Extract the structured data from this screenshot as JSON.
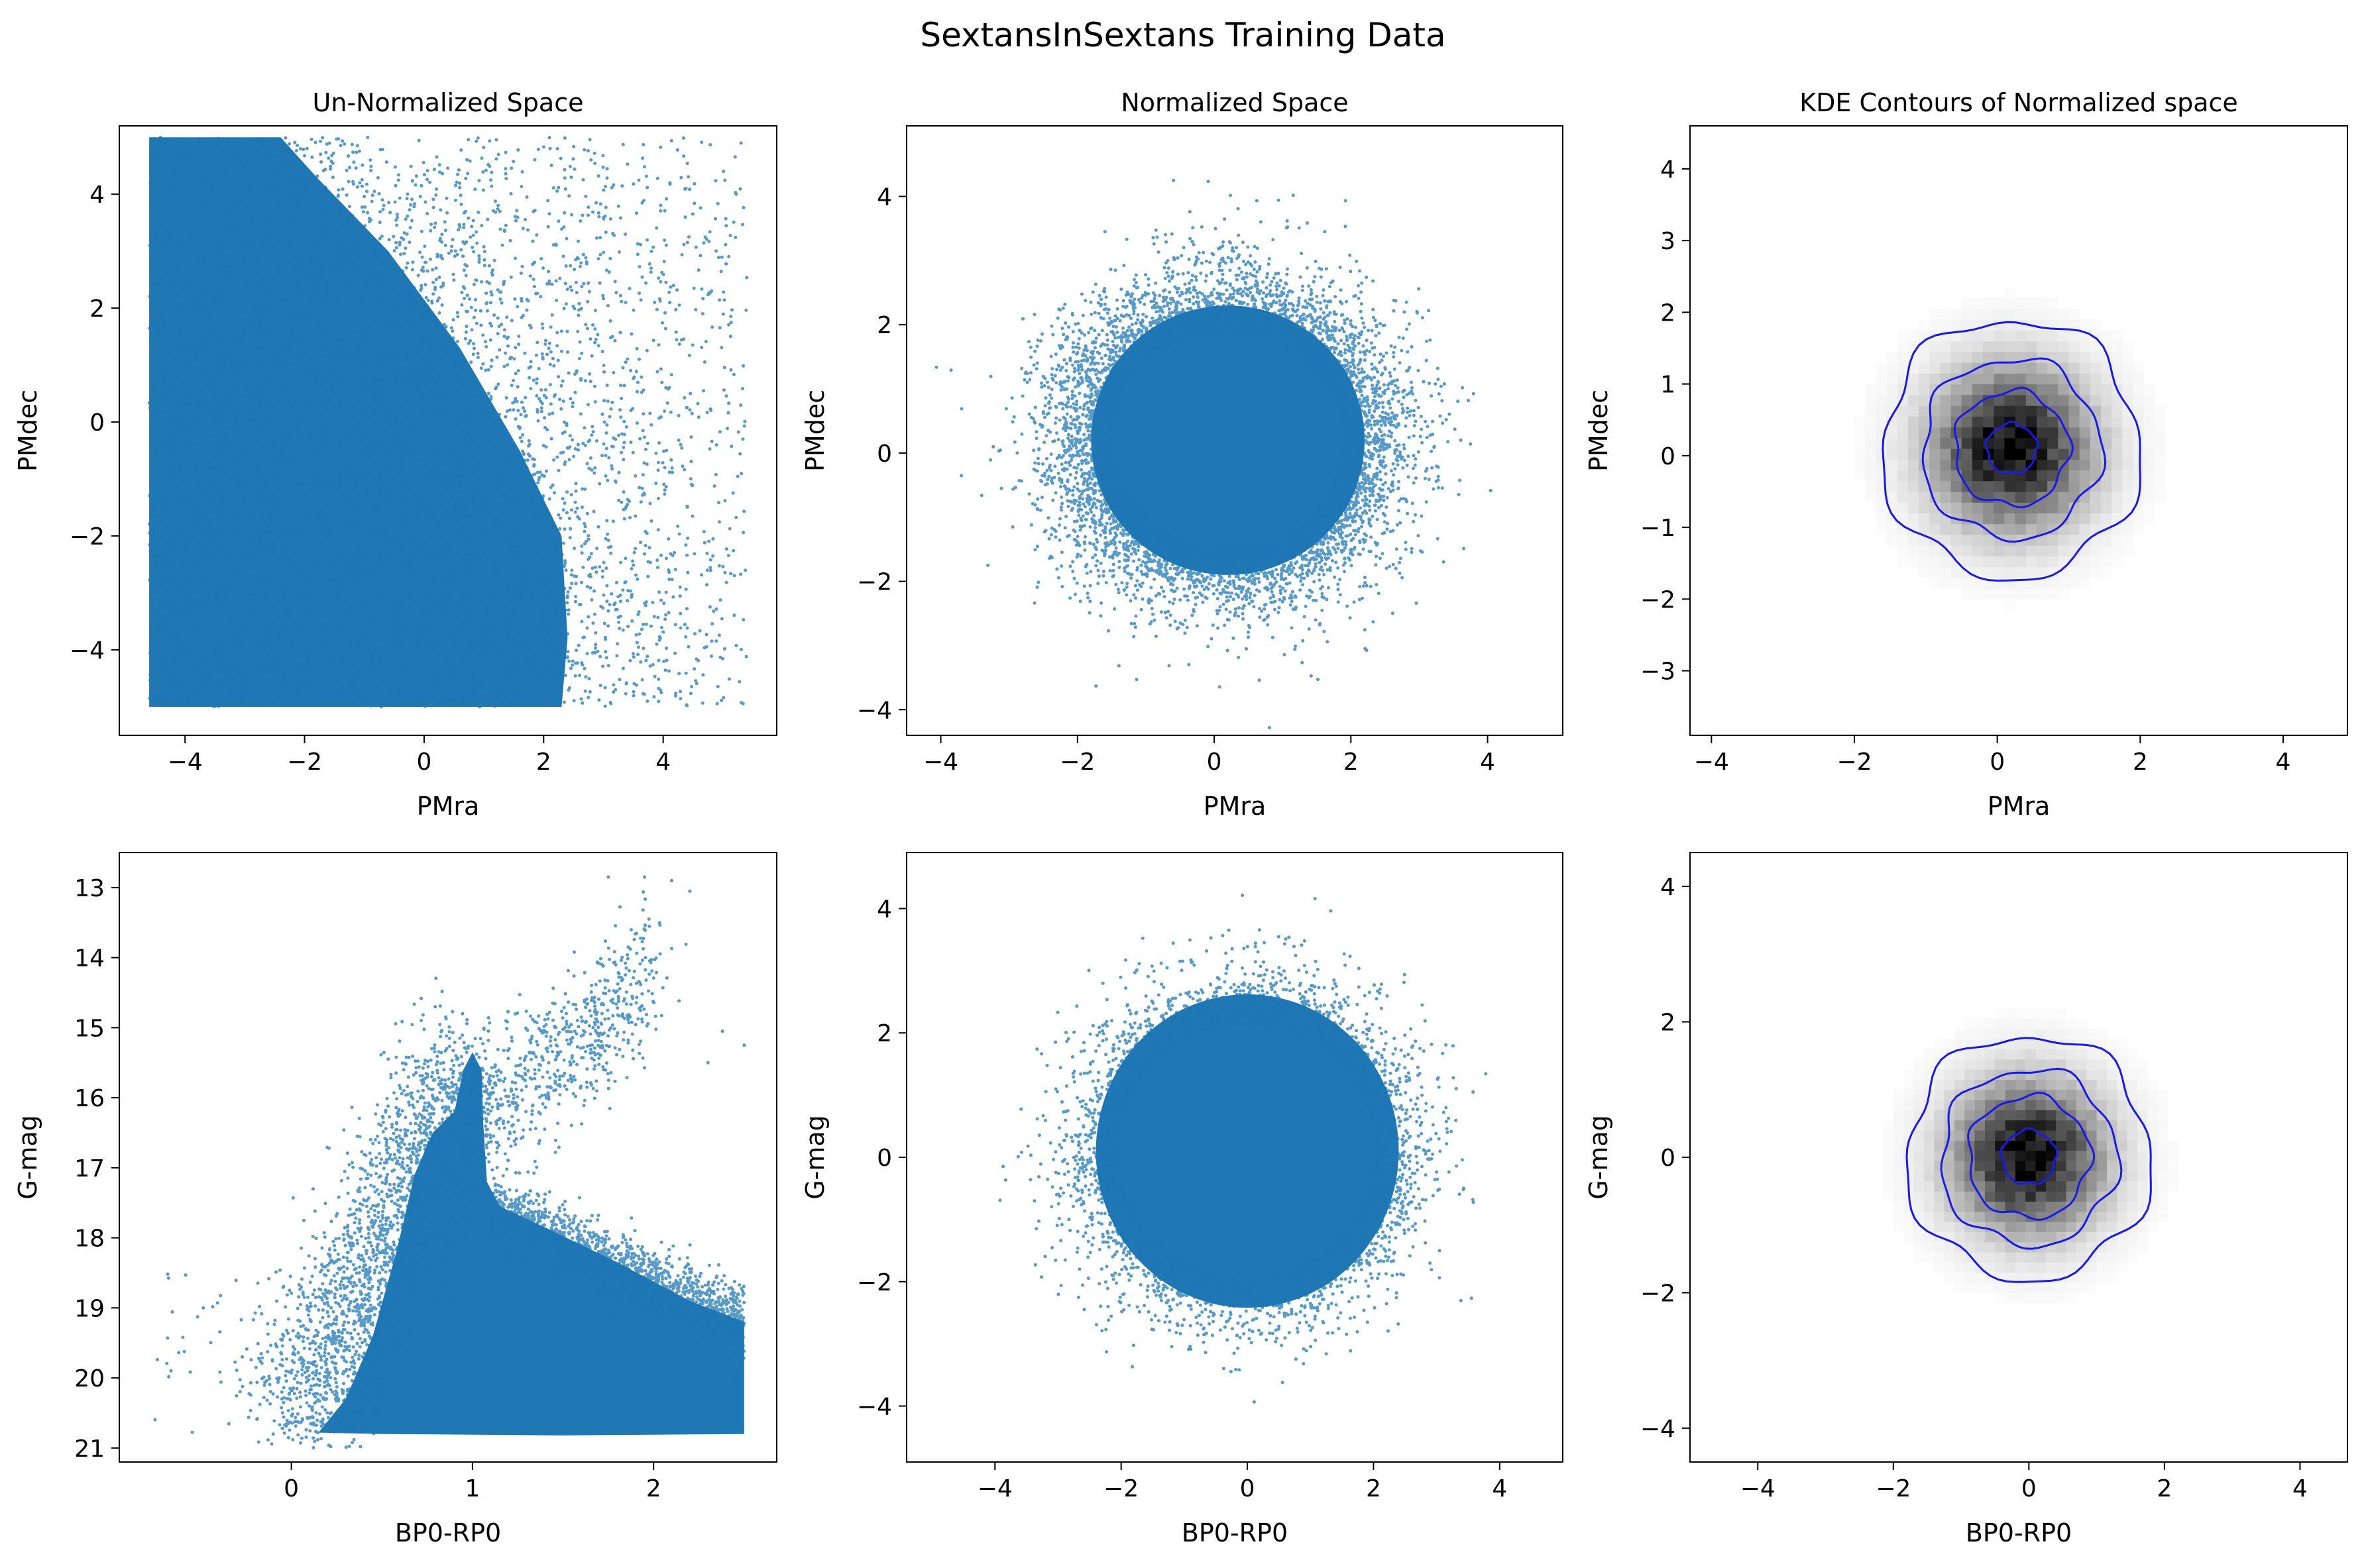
{
  "figure": {
    "title": "SextansInSextans Training Data"
  },
  "colors": {
    "scatter": "#1f77b4",
    "contour": "#1a1ae6",
    "hist_max": "#000000",
    "background": "#ffffff"
  },
  "chart_data": [
    {
      "id": "pm-unnormalized",
      "type": "scatter",
      "title": "Un-Normalized Space",
      "xlabel": "PMra",
      "ylabel": "PMdec",
      "xlim": [
        -5.1,
        5.9
      ],
      "ylim": [
        -5.5,
        5.2
      ],
      "xticks": [
        -4,
        -2,
        0,
        2,
        4
      ],
      "yticks": [
        -4,
        -2,
        0,
        2,
        4
      ],
      "tick_labels_x": [
        "−4",
        "−2",
        "0",
        "2",
        "4"
      ],
      "tick_labels_y": [
        "−4",
        "−2",
        "0",
        "2",
        "4"
      ],
      "series": [
        {
          "color": "#1f77b4",
          "distribution": "uniform box, PMra −4.6 to 5.4, PMdec −5 to 5; dense core fills all but upper-right corner (curved boundary from (−2, 5) to (2.5, −4))"
        }
      ]
    },
    {
      "id": "pm-normalized",
      "type": "scatter",
      "title": "Normalized Space",
      "xlabel": "PMra",
      "ylabel": "PMdec",
      "xlim": [
        -4.5,
        5.1
      ],
      "ylim": [
        -4.4,
        5.1
      ],
      "xticks": [
        -4,
        -2,
        0,
        2,
        4
      ],
      "yticks": [
        -4,
        -2,
        0,
        2,
        4
      ],
      "tick_labels_x": [
        "−4",
        "−2",
        "0",
        "2",
        "4"
      ],
      "tick_labels_y": [
        "−4",
        "−2",
        "0",
        "2",
        "4"
      ],
      "series": [
        {
          "color": "#1f77b4",
          "distribution": "roughly circular cloud centered (0.2, 0.2), dense radius ~2, outliers to radius ~4"
        }
      ]
    },
    {
      "id": "pm-kde",
      "type": "heatmap",
      "title": "KDE Contours of Normalized space",
      "xlabel": "PMra",
      "ylabel": "PMdec",
      "xlim": [
        -4.3,
        4.9
      ],
      "ylim": [
        -3.9,
        4.6
      ],
      "xticks": [
        -4,
        -2,
        0,
        2,
        4
      ],
      "yticks": [
        -3,
        -2,
        -1,
        0,
        1,
        2,
        3,
        4
      ],
      "tick_labels_x": [
        "−4",
        "−2",
        "0",
        "2",
        "4"
      ],
      "tick_labels_y": [
        "−3",
        "−2",
        "−1",
        "0",
        "1",
        "2",
        "3",
        "4"
      ],
      "center": [
        0.2,
        0.1
      ],
      "spread": 0.75,
      "contour_radii": [
        0.35,
        0.8,
        1.25,
        1.8
      ]
    },
    {
      "id": "cmd-unnormalized",
      "type": "scatter",
      "title": "",
      "xlabel": "BP0-RP0",
      "ylabel": "G-mag",
      "xlim": [
        -0.95,
        2.68
      ],
      "ylim": [
        21.2,
        12.5
      ],
      "y_inverted": true,
      "xticks": [
        0,
        1,
        2
      ],
      "yticks": [
        13,
        14,
        15,
        16,
        17,
        18,
        19,
        20,
        21
      ],
      "tick_labels_x": [
        "0",
        "1",
        "2"
      ],
      "tick_labels_y": [
        "13",
        "14",
        "15",
        "16",
        "17",
        "18",
        "19",
        "20",
        "21"
      ],
      "series": [
        {
          "color": "#1f77b4",
          "distribution": "color-magnitude diagram: dense red giant branch rising from (0.6, 20.7) to (1.0, 15.3), dense band toward (2.5, 19.5–20.8), faint limit G≈20.8, bright outliers to G≈12.8"
        }
      ]
    },
    {
      "id": "cmd-normalized",
      "type": "scatter",
      "title": "",
      "xlabel": "BP0-RP0",
      "ylabel": "G-mag",
      "xlim": [
        -5.4,
        5.0
      ],
      "ylim": [
        -4.9,
        4.9
      ],
      "xticks": [
        -4,
        -2,
        0,
        2,
        4
      ],
      "yticks": [
        -4,
        -2,
        0,
        2,
        4
      ],
      "tick_labels_x": [
        "−4",
        "−2",
        "0",
        "2",
        "4"
      ],
      "tick_labels_y": [
        "−4",
        "−2",
        "0",
        "2",
        "4"
      ],
      "series": [
        {
          "color": "#1f77b4",
          "distribution": "roughly circular cloud centered (0, 0.1), dense radius ~2.4, outliers to radius ~4.5"
        }
      ]
    },
    {
      "id": "cmd-kde",
      "type": "heatmap",
      "title": "",
      "xlabel": "BP0-RP0",
      "ylabel": "G-mag",
      "xlim": [
        -5.0,
        4.7
      ],
      "ylim": [
        -4.5,
        4.5
      ],
      "xticks": [
        -4,
        -2,
        0,
        2,
        4
      ],
      "yticks": [
        -4,
        -2,
        0,
        2,
        4
      ],
      "tick_labels_x": [
        "−4",
        "−2",
        "0",
        "2",
        "4"
      ],
      "tick_labels_y": [
        "−4",
        "−2",
        "0",
        "2",
        "4"
      ],
      "center": [
        0.0,
        0.0
      ],
      "spread": 0.75,
      "contour_radii": [
        0.4,
        0.9,
        1.3,
        1.8
      ]
    }
  ]
}
